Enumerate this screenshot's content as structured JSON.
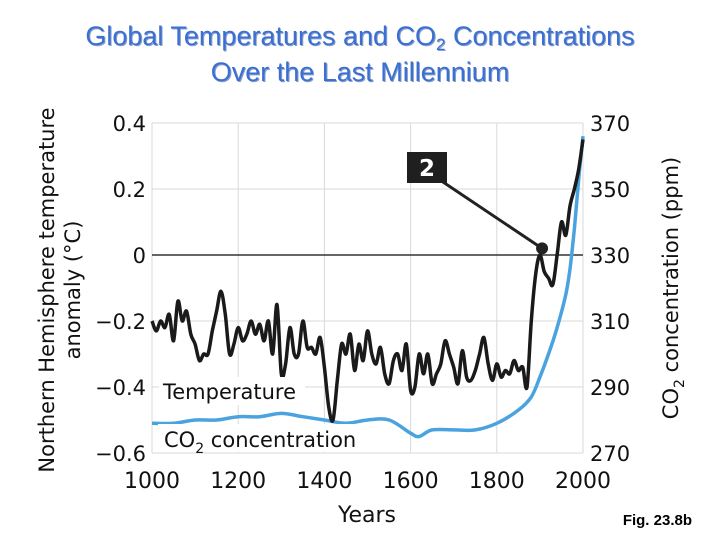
{
  "title": {
    "line1_prefix": "Global Temperatures and CO",
    "line1_sub": "2",
    "line1_suffix": " Concentrations",
    "line2": "Over the Last Millennium"
  },
  "figure_label": "Fig. 23.8b",
  "chart_data": {
    "type": "line",
    "xlabel": "Years",
    "ylabel_left": "Northern Hemisphere temperature anomaly (°C)",
    "ylabel_right": "CO2 concentration (ppm)",
    "xlim": [
      1000,
      2000
    ],
    "ylim_left": [
      -0.6,
      0.4
    ],
    "ylim_right": [
      270,
      370
    ],
    "x_ticks": [
      1000,
      1200,
      1400,
      1600,
      1800,
      2000
    ],
    "y_ticks_left": [
      "0.4",
      "0.2",
      "0",
      "−0.2",
      "−0.4",
      "−0.6"
    ],
    "y_ticks_right": [
      "370",
      "350",
      "330",
      "310",
      "290",
      "270"
    ],
    "colors": {
      "temperature": "#1a1a1a",
      "co2": "#4aa3df",
      "grid": "#d9d9d9",
      "zero_line": "#333333"
    },
    "series": [
      {
        "name": "Temperature",
        "axis": "left",
        "x": [
          1000,
          1010,
          1020,
          1030,
          1040,
          1050,
          1060,
          1070,
          1080,
          1090,
          1100,
          1110,
          1120,
          1130,
          1140,
          1150,
          1160,
          1170,
          1180,
          1190,
          1200,
          1210,
          1220,
          1230,
          1240,
          1250,
          1260,
          1270,
          1280,
          1290,
          1300,
          1310,
          1320,
          1330,
          1340,
          1350,
          1360,
          1370,
          1380,
          1390,
          1400,
          1410,
          1420,
          1430,
          1440,
          1450,
          1460,
          1470,
          1480,
          1490,
          1500,
          1510,
          1520,
          1530,
          1540,
          1550,
          1560,
          1570,
          1580,
          1590,
          1600,
          1610,
          1620,
          1630,
          1640,
          1650,
          1660,
          1670,
          1680,
          1690,
          1700,
          1710,
          1720,
          1730,
          1740,
          1750,
          1760,
          1770,
          1780,
          1790,
          1800,
          1810,
          1820,
          1830,
          1840,
          1850,
          1860,
          1870,
          1880,
          1890,
          1900,
          1910,
          1920,
          1930,
          1940,
          1950,
          1960,
          1970,
          1980,
          1990,
          2000
        ],
        "values": [
          -0.2,
          -0.23,
          -0.2,
          -0.22,
          -0.18,
          -0.26,
          -0.14,
          -0.2,
          -0.17,
          -0.24,
          -0.27,
          -0.32,
          -0.3,
          -0.3,
          -0.23,
          -0.17,
          -0.11,
          -0.18,
          -0.3,
          -0.27,
          -0.22,
          -0.26,
          -0.24,
          -0.2,
          -0.24,
          -0.21,
          -0.26,
          -0.2,
          -0.3,
          -0.15,
          -0.36,
          -0.33,
          -0.22,
          -0.3,
          -0.3,
          -0.2,
          -0.28,
          -0.28,
          -0.3,
          -0.25,
          -0.34,
          -0.46,
          -0.5,
          -0.38,
          -0.27,
          -0.3,
          -0.24,
          -0.35,
          -0.27,
          -0.32,
          -0.23,
          -0.3,
          -0.33,
          -0.28,
          -0.36,
          -0.39,
          -0.32,
          -0.3,
          -0.35,
          -0.27,
          -0.41,
          -0.4,
          -0.3,
          -0.36,
          -0.3,
          -0.39,
          -0.36,
          -0.33,
          -0.26,
          -0.3,
          -0.34,
          -0.39,
          -0.29,
          -0.37,
          -0.38,
          -0.35,
          -0.3,
          -0.25,
          -0.33,
          -0.38,
          -0.33,
          -0.37,
          -0.35,
          -0.36,
          -0.32,
          -0.35,
          -0.34,
          -0.4,
          -0.2,
          -0.06,
          0.0,
          -0.05,
          -0.07,
          -0.09,
          0.0,
          0.1,
          0.06,
          0.15,
          0.2,
          0.26,
          0.35
        ]
      },
      {
        "name": "CO2 concentration",
        "axis": "right",
        "x": [
          1000,
          1050,
          1100,
          1150,
          1200,
          1250,
          1300,
          1350,
          1400,
          1450,
          1500,
          1550,
          1600,
          1620,
          1650,
          1700,
          1750,
          1800,
          1850,
          1880,
          1900,
          1920,
          1940,
          1960,
          1970,
          1980,
          1990,
          2000
        ],
        "values": [
          279,
          279,
          280,
          280,
          281,
          281,
          282,
          281,
          280,
          279,
          280,
          280,
          276,
          275,
          277,
          277,
          277,
          279,
          283,
          287,
          293,
          300,
          308,
          318,
          326,
          338,
          353,
          366
        ]
      }
    ],
    "annotations": [
      {
        "text": "Temperature",
        "series": "Temperature"
      },
      {
        "text": "CO",
        "sub": "2",
        "suffix": " concentration",
        "series": "CO2 concentration"
      },
      {
        "text": "2",
        "type": "callout",
        "target_year": 1905,
        "target_value": 0.02
      }
    ]
  }
}
